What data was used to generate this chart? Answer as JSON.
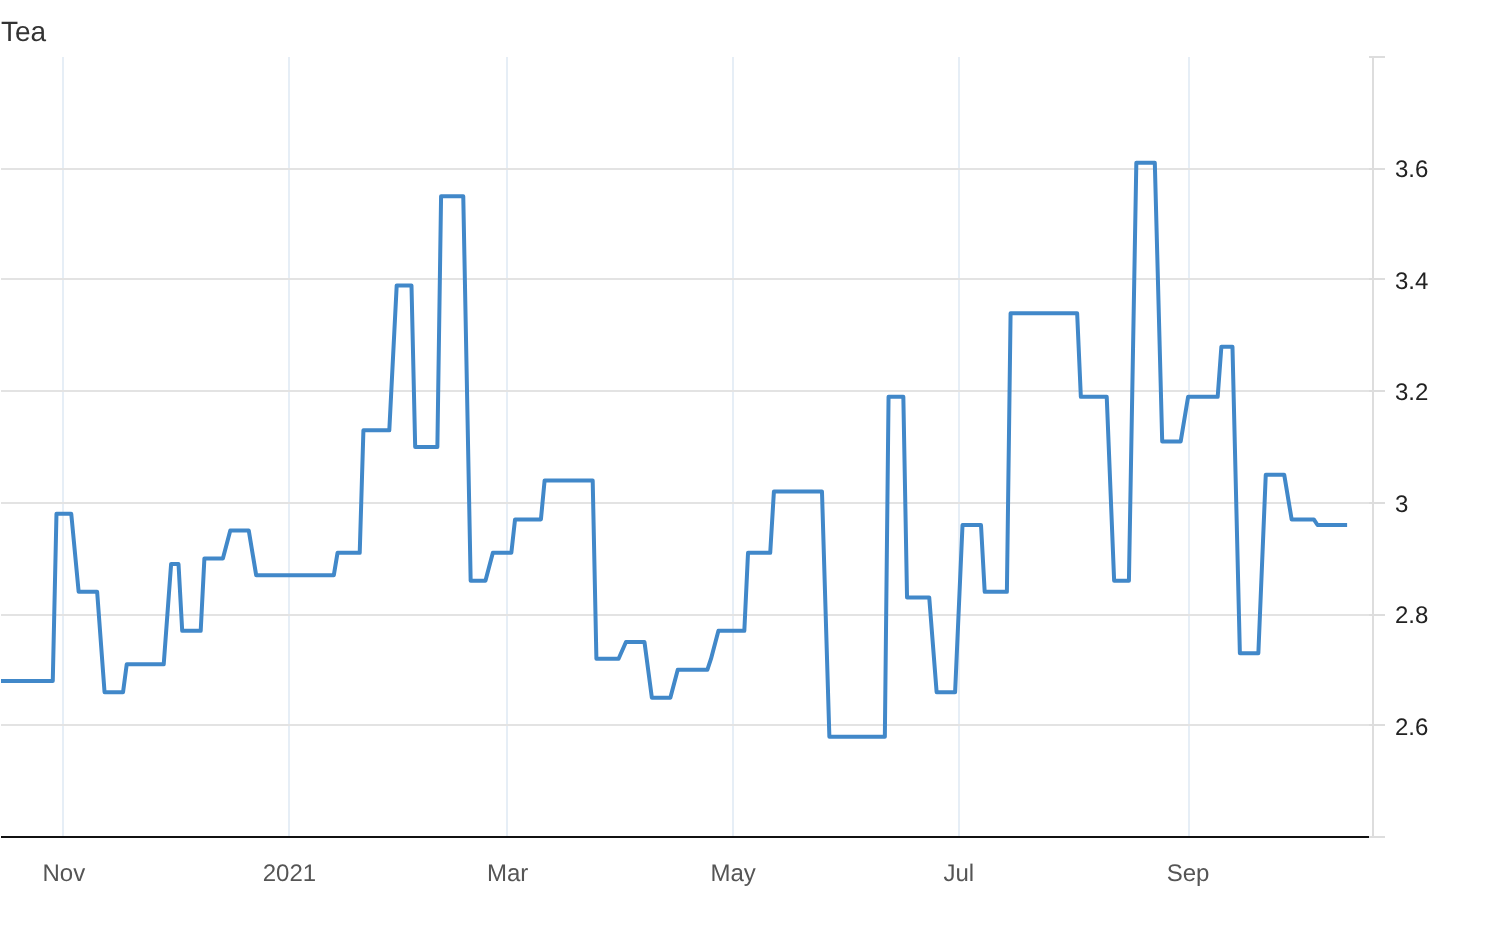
{
  "chart_data": {
    "type": "line",
    "title": "Tea",
    "x": [
      "2020-10-15",
      "2020-10-29",
      "2020-10-30",
      "2020-11-03",
      "2020-11-05",
      "2020-11-10",
      "2020-11-12",
      "2020-11-17",
      "2020-11-18",
      "2020-11-28",
      "2020-11-30",
      "2020-12-02",
      "2020-12-03",
      "2020-12-08",
      "2020-12-09",
      "2020-12-14",
      "2020-12-16",
      "2020-12-21",
      "2020-12-23",
      "2021-01-13",
      "2021-01-14",
      "2021-01-20",
      "2021-01-21",
      "2021-01-28",
      "2021-01-30",
      "2021-02-03",
      "2021-02-04",
      "2021-02-10",
      "2021-02-11",
      "2021-02-17",
      "2021-02-19",
      "2021-02-23",
      "2021-02-25",
      "2021-03-02",
      "2021-03-03",
      "2021-03-10",
      "2021-03-11",
      "2021-03-24",
      "2021-03-25",
      "2021-03-31",
      "2021-04-02",
      "2021-04-07",
      "2021-04-09",
      "2021-04-14",
      "2021-04-16",
      "2021-04-24",
      "2021-04-25",
      "2021-04-27",
      "2021-05-04",
      "2021-05-05",
      "2021-05-11",
      "2021-05-12",
      "2021-05-25",
      "2021-05-27",
      "2021-06-11",
      "2021-06-12",
      "2021-06-16",
      "2021-06-17",
      "2021-06-23",
      "2021-06-25",
      "2021-06-30",
      "2021-07-02",
      "2021-07-07",
      "2021-07-08",
      "2021-07-14",
      "2021-07-15",
      "2021-08-02",
      "2021-08-03",
      "2021-08-10",
      "2021-08-12",
      "2021-08-16",
      "2021-08-18",
      "2021-08-23",
      "2021-08-25",
      "2021-08-30",
      "2021-09-01",
      "2021-09-09",
      "2021-09-10",
      "2021-09-13",
      "2021-09-15",
      "2021-09-20",
      "2021-09-22",
      "2021-09-27",
      "2021-09-29",
      "2021-10-05",
      "2021-10-06",
      "2021-10-14"
    ],
    "series": [
      {
        "color": "#4188c9",
        "values": [
          2.68,
          2.68,
          2.98,
          2.98,
          2.84,
          2.84,
          2.66,
          2.66,
          2.71,
          2.71,
          2.89,
          2.89,
          2.77,
          2.77,
          2.9,
          2.9,
          2.95,
          2.95,
          2.87,
          2.87,
          2.91,
          2.91,
          3.13,
          3.13,
          3.39,
          3.39,
          3.1,
          3.1,
          3.55,
          3.55,
          2.86,
          2.86,
          2.91,
          2.91,
          2.97,
          2.97,
          3.04,
          3.04,
          2.72,
          2.72,
          2.75,
          2.75,
          2.65,
          2.65,
          2.7,
          2.7,
          2.72,
          2.77,
          2.77,
          2.91,
          2.91,
          3.02,
          3.02,
          2.58,
          2.58,
          3.19,
          3.19,
          2.83,
          2.83,
          2.66,
          2.66,
          2.96,
          2.96,
          2.84,
          2.84,
          3.34,
          3.34,
          3.19,
          3.19,
          2.86,
          2.86,
          3.61,
          3.61,
          3.11,
          3.11,
          3.19,
          3.19,
          3.28,
          3.28,
          2.73,
          2.73,
          3.05,
          3.05,
          2.97,
          2.97,
          2.96,
          2.96
        ]
      }
    ],
    "xlim": [
      "2020-10-15",
      "2021-10-21"
    ],
    "xticks": [
      {
        "value": "2020-11-01",
        "label": "Nov"
      },
      {
        "value": "2021-01-01",
        "label": "2021"
      },
      {
        "value": "2021-03-01",
        "label": "Mar"
      },
      {
        "value": "2021-05-01",
        "label": "May"
      },
      {
        "value": "2021-07-01",
        "label": "Jul"
      },
      {
        "value": "2021-09-01",
        "label": "Sep"
      }
    ],
    "ylim": [
      2.4,
      3.8
    ],
    "yticks": [
      {
        "value": 2.4,
        "label": null
      },
      2.6,
      2.8,
      3,
      3.2,
      3.4,
      3.6,
      {
        "value": 3.8,
        "label": null
      }
    ],
    "grid": true,
    "marker": "none",
    "line_style": "solid"
  }
}
